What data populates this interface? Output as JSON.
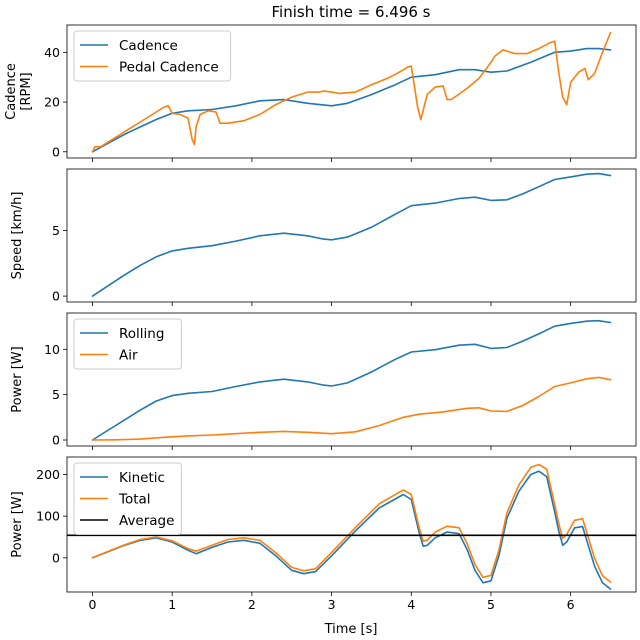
{
  "figure": {
    "title": "Finish time = 6.496 s",
    "xlabel": "Time [s]"
  },
  "chart_data": [
    {
      "type": "line",
      "title": "Finish time = 6.496 s",
      "xlabel": "",
      "ylabel": [
        "Cadence",
        "[RPM]"
      ],
      "xlim": [
        -0.32,
        6.82
      ],
      "ylim": [
        -2.5,
        51
      ],
      "xticks": [
        0,
        1,
        2,
        3,
        4,
        5,
        6
      ],
      "show_xtick_labels": false,
      "yticks": [
        0,
        20,
        40
      ],
      "grid": false,
      "legend": "top-left",
      "series": [
        {
          "name": "Cadence",
          "color": "#1f77b4",
          "x": [
            0,
            0.2,
            0.4,
            0.6,
            0.8,
            1.0,
            1.2,
            1.5,
            1.8,
            2.1,
            2.4,
            2.7,
            3.0,
            3.2,
            3.5,
            3.8,
            4.0,
            4.3,
            4.6,
            4.8,
            5.0,
            5.2,
            5.5,
            5.8,
            6.0,
            6.2,
            6.35,
            6.5
          ],
          "y": [
            0,
            3.5,
            7,
            10,
            13,
            15.5,
            16.5,
            17,
            18.5,
            20.5,
            21,
            19.5,
            18.5,
            19.5,
            23,
            27,
            30,
            31,
            33,
            33,
            32,
            32.5,
            36,
            40,
            40.5,
            41.5,
            41.5,
            41
          ]
        },
        {
          "name": "Pedal Cadence",
          "color": "#ff7f0e",
          "x": [
            0,
            0.03,
            0.1,
            0.3,
            0.5,
            0.7,
            0.9,
            0.95,
            1.0,
            1.1,
            1.2,
            1.25,
            1.28,
            1.3,
            1.35,
            1.45,
            1.55,
            1.6,
            1.7,
            1.9,
            2.1,
            2.3,
            2.5,
            2.7,
            2.85,
            2.9,
            3.0,
            3.1,
            3.3,
            3.5,
            3.7,
            3.85,
            3.95,
            4.0,
            4.08,
            4.12,
            4.2,
            4.3,
            4.4,
            4.45,
            4.5,
            4.7,
            4.85,
            5.0,
            5.05,
            5.15,
            5.3,
            5.45,
            5.6,
            5.75,
            5.8,
            5.85,
            5.9,
            5.95,
            6.0,
            6.1,
            6.18,
            6.22,
            6.3,
            6.4,
            6.5
          ],
          "y": [
            0,
            2,
            2,
            6,
            10,
            14,
            18,
            18.5,
            15.5,
            15,
            13.5,
            5,
            3,
            10,
            15,
            16.5,
            16,
            11.5,
            11.5,
            12.5,
            15,
            19,
            22,
            24,
            24,
            24.5,
            24,
            23.5,
            24,
            27,
            29.5,
            32,
            34,
            34.5,
            18,
            13,
            23,
            26,
            26.5,
            21,
            21,
            25.5,
            29.5,
            36,
            38.5,
            41,
            39.5,
            39.5,
            41.5,
            44,
            44.5,
            32,
            22,
            19,
            28,
            32,
            33.5,
            29,
            31.5,
            40,
            48
          ]
        }
      ]
    },
    {
      "type": "line",
      "xlabel": "",
      "ylabel": [
        "Speed [km/h]"
      ],
      "xlim": [
        -0.32,
        6.82
      ],
      "ylim": [
        -0.45,
        9.7
      ],
      "xticks": [
        0,
        1,
        2,
        3,
        4,
        5,
        6
      ],
      "show_xtick_labels": false,
      "yticks": [
        0,
        5
      ],
      "grid": false,
      "legend": "",
      "series": [
        {
          "name": "",
          "color": "#1f77b4",
          "x": [
            0,
            0.2,
            0.4,
            0.6,
            0.8,
            1.0,
            1.2,
            1.5,
            1.8,
            2.1,
            2.4,
            2.7,
            2.9,
            3.0,
            3.2,
            3.5,
            3.8,
            4.0,
            4.3,
            4.6,
            4.8,
            5.0,
            5.2,
            5.4,
            5.6,
            5.8,
            6.0,
            6.2,
            6.35,
            6.5
          ],
          "y": [
            0,
            0.8,
            1.6,
            2.35,
            3.0,
            3.45,
            3.65,
            3.85,
            4.2,
            4.6,
            4.8,
            4.6,
            4.35,
            4.3,
            4.5,
            5.25,
            6.25,
            6.9,
            7.1,
            7.45,
            7.55,
            7.3,
            7.35,
            7.8,
            8.35,
            8.9,
            9.1,
            9.3,
            9.35,
            9.2
          ]
        }
      ]
    },
    {
      "type": "line",
      "xlabel": "",
      "ylabel": [
        "Power [W]"
      ],
      "xlim": [
        -0.32,
        6.82
      ],
      "ylim": [
        -0.66,
        14
      ],
      "xticks": [
        0,
        1,
        2,
        3,
        4,
        5,
        6
      ],
      "show_xtick_labels": false,
      "yticks": [
        0,
        5,
        10
      ],
      "grid": false,
      "legend": "top-left",
      "series": [
        {
          "name": "Rolling",
          "color": "#1f77b4",
          "x": [
            0,
            0.2,
            0.4,
            0.6,
            0.8,
            1.0,
            1.2,
            1.5,
            1.8,
            2.1,
            2.4,
            2.7,
            2.9,
            3.0,
            3.2,
            3.5,
            3.8,
            4.0,
            4.3,
            4.6,
            4.8,
            5.0,
            5.2,
            5.4,
            5.6,
            5.8,
            6.0,
            6.2,
            6.35,
            6.5
          ],
          "y": [
            0,
            1.1,
            2.2,
            3.3,
            4.3,
            4.9,
            5.15,
            5.35,
            5.9,
            6.4,
            6.7,
            6.4,
            6.05,
            5.95,
            6.3,
            7.5,
            8.9,
            9.7,
            9.95,
            10.45,
            10.55,
            10.1,
            10.2,
            10.9,
            11.7,
            12.55,
            12.85,
            13.1,
            13.15,
            12.95
          ]
        },
        {
          "name": "Air",
          "color": "#ff7f0e",
          "x": [
            0,
            0.3,
            0.6,
            0.9,
            1.2,
            1.5,
            1.8,
            2.1,
            2.4,
            2.7,
            3.0,
            3.3,
            3.6,
            3.9,
            4.1,
            4.4,
            4.7,
            4.85,
            5.0,
            5.2,
            5.4,
            5.6,
            5.8,
            6.0,
            6.2,
            6.35,
            6.5
          ],
          "y": [
            0,
            0.02,
            0.1,
            0.3,
            0.45,
            0.55,
            0.7,
            0.85,
            0.95,
            0.85,
            0.7,
            0.9,
            1.6,
            2.5,
            2.85,
            3.1,
            3.5,
            3.55,
            3.2,
            3.15,
            3.8,
            4.8,
            5.9,
            6.3,
            6.75,
            6.9,
            6.65
          ]
        }
      ]
    },
    {
      "type": "line",
      "xlabel": "Time [s]",
      "ylabel": [
        "Power [W]"
      ],
      "xlim": [
        -0.32,
        6.82
      ],
      "ylim": [
        -82,
        242
      ],
      "xticks": [
        0,
        1,
        2,
        3,
        4,
        5,
        6
      ],
      "show_xtick_labels": true,
      "yticks": [
        0,
        100,
        200
      ],
      "grid": false,
      "legend": "top-left",
      "series": [
        {
          "name": "Kinetic",
          "color": "#1f77b4",
          "x": [
            0,
            0.2,
            0.4,
            0.6,
            0.8,
            1.0,
            1.2,
            1.3,
            1.5,
            1.7,
            1.9,
            2.1,
            2.3,
            2.5,
            2.65,
            2.8,
            3.0,
            3.3,
            3.6,
            3.9,
            4.0,
            4.1,
            4.15,
            4.2,
            4.3,
            4.45,
            4.6,
            4.7,
            4.8,
            4.9,
            5.0,
            5.1,
            5.2,
            5.35,
            5.5,
            5.6,
            5.7,
            5.8,
            5.85,
            5.9,
            5.95,
            6.05,
            6.15,
            6.3,
            6.4,
            6.5
          ],
          "y": [
            0,
            15,
            30,
            42,
            48,
            38,
            18,
            10,
            25,
            38,
            42,
            35,
            5,
            -30,
            -38,
            -33,
            5,
            65,
            120,
            152,
            140,
            60,
            28,
            30,
            48,
            62,
            58,
            20,
            -30,
            -60,
            -55,
            5,
            95,
            160,
            200,
            208,
            195,
            110,
            65,
            30,
            38,
            72,
            75,
            -20,
            -60,
            -75
          ]
        },
        {
          "name": "Total",
          "color": "#ff7f0e",
          "x": [
            0,
            0.2,
            0.4,
            0.6,
            0.8,
            1.0,
            1.2,
            1.3,
            1.5,
            1.7,
            1.9,
            2.1,
            2.3,
            2.5,
            2.65,
            2.8,
            3.0,
            3.3,
            3.6,
            3.9,
            4.0,
            4.1,
            4.15,
            4.2,
            4.3,
            4.45,
            4.6,
            4.7,
            4.8,
            4.9,
            5.0,
            5.1,
            5.2,
            5.35,
            5.5,
            5.6,
            5.7,
            5.8,
            5.85,
            5.9,
            5.95,
            6.05,
            6.15,
            6.3,
            6.4,
            6.5
          ],
          "y": [
            0,
            16,
            31,
            44,
            50,
            41,
            22,
            16,
            30,
            44,
            48,
            42,
            12,
            -23,
            -31,
            -26,
            13,
            73,
            130,
            163,
            152,
            72,
            40,
            42,
            62,
            76,
            72,
            34,
            -16,
            -47,
            -42,
            18,
            108,
            175,
            217,
            224,
            213,
            128,
            83,
            47,
            56,
            90,
            94,
            -1,
            -43,
            -58
          ]
        }
      ],
      "hlines": [
        {
          "name": "Average",
          "y": 54,
          "color": "#000000"
        }
      ]
    }
  ]
}
